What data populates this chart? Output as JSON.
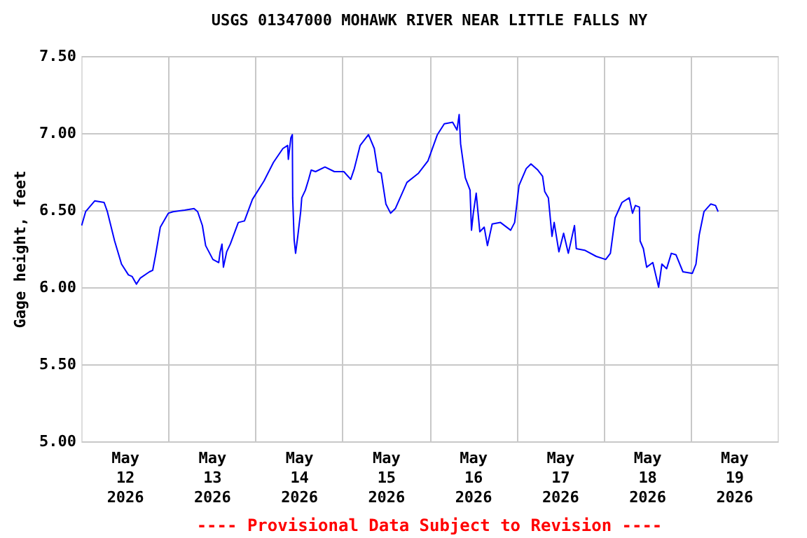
{
  "chart_data": {
    "type": "line",
    "title": "USGS 01347000 MOHAWK RIVER NEAR LITTLE FALLS NY",
    "ylabel": "Gage height, feet",
    "annotations": [
      "---- Provisional Data Subject to Revision ----"
    ],
    "xlim": [
      "2026-05-12",
      "2026-05-20"
    ],
    "xticks": [
      {
        "value": "2026-05-12T12:00",
        "label": "May\n12\n2026"
      },
      {
        "value": "2026-05-13T12:00",
        "label": "May\n13\n2026"
      },
      {
        "value": "2026-05-14T12:00",
        "label": "May\n14\n2026"
      },
      {
        "value": "2026-05-15T12:00",
        "label": "May\n15\n2026"
      },
      {
        "value": "2026-05-16T12:00",
        "label": "May\n16\n2026"
      },
      {
        "value": "2026-05-17T12:00",
        "label": "May\n17\n2026"
      },
      {
        "value": "2026-05-18T12:00",
        "label": "May\n18\n2026"
      },
      {
        "value": "2026-05-19T12:00",
        "label": "May\n19\n2026"
      },
      {
        "value": "2026-05-13",
        "label": null
      },
      {
        "value": "2026-05-14",
        "label": null
      },
      {
        "value": "2026-05-15",
        "label": null
      },
      {
        "value": "2026-05-16",
        "label": null
      },
      {
        "value": "2026-05-17",
        "label": null
      },
      {
        "value": "2026-05-18",
        "label": null
      },
      {
        "value": "2026-05-19",
        "label": null
      }
    ],
    "ylim": [
      5.0,
      7.5
    ],
    "yticks": [
      {
        "value": 5.0,
        "label": "5.00"
      },
      {
        "value": 5.5,
        "label": "5.50"
      },
      {
        "value": 6.0,
        "label": "6.00"
      },
      {
        "value": 6.5,
        "label": "6.50"
      },
      {
        "value": 7.0,
        "label": "7.00"
      },
      {
        "value": 7.5,
        "label": "7.50"
      }
    ],
    "grid": true,
    "marker": "none",
    "line_style": "solid",
    "series": [
      {
        "color": "#0000ff",
        "x": [
          "2026-05-12T00:06",
          "2026-05-12T01:12",
          "2026-05-12T03:42",
          "2026-05-12T06:18",
          "2026-05-12T07:12",
          "2026-05-12T09:12",
          "2026-05-12T11:06",
          "2026-05-12T13:00",
          "2026-05-12T14:00",
          "2026-05-12T15:12",
          "2026-05-12T16:18",
          "2026-05-12T18:48",
          "2026-05-12T19:42",
          "2026-05-12T20:30",
          "2026-05-12T21:48",
          "2026-05-13T00:00",
          "2026-05-13T01:18",
          "2026-05-13T04:30",
          "2026-05-13T07:06",
          "2026-05-13T08:06",
          "2026-05-13T09:24",
          "2026-05-13T10:18",
          "2026-05-13T12:18",
          "2026-05-13T13:54",
          "2026-05-13T14:18",
          "2026-05-13T14:48",
          "2026-05-13T15:12",
          "2026-05-13T16:06",
          "2026-05-13T17:06",
          "2026-05-13T19:18",
          "2026-05-13T21:00",
          "2026-05-13T23:12",
          "2026-05-14T02:24",
          "2026-05-14T05:00",
          "2026-05-14T07:36",
          "2026-05-14T08:54",
          "2026-05-14T09:06",
          "2026-05-14T09:48",
          "2026-05-14T10:12",
          "2026-05-14T10:18",
          "2026-05-14T10:42",
          "2026-05-14T11:06",
          "2026-05-14T11:42",
          "2026-05-14T12:30",
          "2026-05-14T12:48",
          "2026-05-14T13:48",
          "2026-05-14T14:42",
          "2026-05-14T15:24",
          "2026-05-14T16:36",
          "2026-05-14T19:12",
          "2026-05-14T21:48",
          "2026-05-15T00:24",
          "2026-05-15T02:18",
          "2026-05-15T03:18",
          "2026-05-15T04:54",
          "2026-05-15T07:12",
          "2026-05-15T08:48",
          "2026-05-15T09:48",
          "2026-05-15T10:42",
          "2026-05-15T12:00",
          "2026-05-15T13:18",
          "2026-05-15T14:36",
          "2026-05-15T17:48",
          "2026-05-15T21:00",
          "2026-05-15T23:36",
          "2026-05-16T02:12",
          "2026-05-16T04:06",
          "2026-05-16T06:24",
          "2026-05-16T07:36",
          "2026-05-16T08:12",
          "2026-05-16T08:36",
          "2026-05-16T09:54",
          "2026-05-16T11:12",
          "2026-05-16T11:36",
          "2026-05-16T12:06",
          "2026-05-16T12:54",
          "2026-05-16T13:54",
          "2026-05-16T15:06",
          "2026-05-16T16:00",
          "2026-05-16T17:18",
          "2026-05-16T19:36",
          "2026-05-16T22:24",
          "2026-05-16T23:30",
          "2026-05-17T00:42",
          "2026-05-17T02:42",
          "2026-05-17T04:00",
          "2026-05-17T05:54",
          "2026-05-17T07:12",
          "2026-05-17T07:48",
          "2026-05-17T08:48",
          "2026-05-17T09:48",
          "2026-05-17T10:24",
          "2026-05-17T11:42",
          "2026-05-17T13:00",
          "2026-05-17T14:18",
          "2026-05-17T16:00",
          "2026-05-17T16:30",
          "2026-05-17T18:48",
          "2026-05-17T22:00",
          "2026-05-18T00:36",
          "2026-05-18T01:54",
          "2026-05-18T03:12",
          "2026-05-18T05:06",
          "2026-05-18T07:06",
          "2026-05-18T08:00",
          "2026-05-18T08:48",
          "2026-05-18T09:54",
          "2026-05-18T10:06",
          "2026-05-18T11:00",
          "2026-05-18T11:54",
          "2026-05-18T13:36",
          "2026-05-18T15:12",
          "2026-05-18T16:06",
          "2026-05-18T17:24",
          "2026-05-18T18:42",
          "2026-05-18T20:00",
          "2026-05-18T21:54",
          "2026-05-19T00:30",
          "2026-05-19T01:30",
          "2026-05-19T02:24",
          "2026-05-19T03:42",
          "2026-05-19T05:36",
          "2026-05-19T06:54",
          "2026-05-19T07:36"
        ],
        "values": [
          6.4,
          6.49,
          6.56,
          6.55,
          6.49,
          6.3,
          6.15,
          6.08,
          6.07,
          6.02,
          6.06,
          6.1,
          6.11,
          6.21,
          6.39,
          6.48,
          6.49,
          6.5,
          6.51,
          6.49,
          6.4,
          6.27,
          6.18,
          6.16,
          6.23,
          6.28,
          6.13,
          6.23,
          6.28,
          6.42,
          6.43,
          6.57,
          6.69,
          6.81,
          6.9,
          6.92,
          6.83,
          6.97,
          6.99,
          6.58,
          6.31,
          6.22,
          6.33,
          6.49,
          6.58,
          6.63,
          6.7,
          6.76,
          6.75,
          6.78,
          6.75,
          6.75,
          6.7,
          6.77,
          6.92,
          6.99,
          6.9,
          6.75,
          6.74,
          6.54,
          6.48,
          6.51,
          6.68,
          6.74,
          6.82,
          6.99,
          7.06,
          7.07,
          7.02,
          7.12,
          6.93,
          6.71,
          6.63,
          6.37,
          6.48,
          6.61,
          6.36,
          6.39,
          6.27,
          6.41,
          6.42,
          6.37,
          6.42,
          6.66,
          6.77,
          6.8,
          6.76,
          6.72,
          6.62,
          6.58,
          6.33,
          6.42,
          6.23,
          6.35,
          6.22,
          6.4,
          6.25,
          6.24,
          6.2,
          6.18,
          6.22,
          6.45,
          6.55,
          6.58,
          6.48,
          6.53,
          6.52,
          6.3,
          6.25,
          6.13,
          6.16,
          6.0,
          6.15,
          6.12,
          6.22,
          6.21,
          6.1,
          6.09,
          6.15,
          6.34,
          6.49,
          6.54,
          6.53,
          6.49
        ]
      }
    ]
  }
}
